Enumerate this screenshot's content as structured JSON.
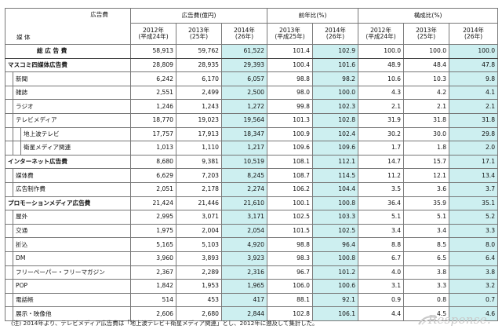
{
  "header": {
    "corner_top": "広告費",
    "corner_bottom": "媒 体",
    "groups": [
      {
        "label": "広告費(億円)"
      },
      {
        "label": "前年比(%)"
      },
      {
        "label": "構成比(%)"
      }
    ],
    "subcols": [
      {
        "l1": "2012年",
        "l2": "(平成24年)"
      },
      {
        "l1": "2013年",
        "l2": "(25年)"
      },
      {
        "l1": "2014年",
        "l2": "(26年)"
      },
      {
        "l1": "2013年",
        "l2": "(平成25年)"
      },
      {
        "l1": "2014年",
        "l2": "(26年)"
      },
      {
        "l1": "2012年",
        "l2": "(平成24年)"
      },
      {
        "l1": "2013年",
        "l2": "(25年)"
      },
      {
        "l1": "2014年",
        "l2": "(26年)"
      }
    ]
  },
  "rows": [
    {
      "label": "総 広 告 費",
      "v": [
        "58,913",
        "59,762",
        "61,522",
        "101.4",
        "102.9",
        "100.0",
        "100.0",
        "100.0"
      ]
    },
    {
      "label": "マスコミ四媒体広告費",
      "v": [
        "28,809",
        "28,935",
        "29,393",
        "100.4",
        "101.6",
        "48.9",
        "48.4",
        "47.8"
      ]
    },
    {
      "label": "新聞",
      "v": [
        "6,242",
        "6,170",
        "6,057",
        "98.8",
        "98.2",
        "10.6",
        "10.3",
        "9.8"
      ]
    },
    {
      "label": "雑誌",
      "v": [
        "2,551",
        "2,499",
        "2,500",
        "98.0",
        "100.0",
        "4.3",
        "4.2",
        "4.1"
      ]
    },
    {
      "label": "ラジオ",
      "v": [
        "1,246",
        "1,243",
        "1,272",
        "99.8",
        "102.3",
        "2.1",
        "2.1",
        "2.1"
      ]
    },
    {
      "label": "テレビメディア",
      "v": [
        "18,770",
        "19,023",
        "19,564",
        "101.3",
        "102.8",
        "31.9",
        "31.8",
        "31.8"
      ]
    },
    {
      "label": "地上波テレビ",
      "v": [
        "17,757",
        "17,913",
        "18,347",
        "100.9",
        "102.4",
        "30.2",
        "30.0",
        "29.8"
      ]
    },
    {
      "label": "衛星メディア関連",
      "v": [
        "1,013",
        "1,110",
        "1,217",
        "109.6",
        "109.6",
        "1.7",
        "1.8",
        "2.0"
      ]
    },
    {
      "label": "インターネット広告費",
      "v": [
        "8,680",
        "9,381",
        "10,519",
        "108.1",
        "112.1",
        "14.7",
        "15.7",
        "17.1"
      ]
    },
    {
      "label": "媒体費",
      "v": [
        "6,629",
        "7,203",
        "8,245",
        "108.7",
        "114.5",
        "11.2",
        "12.1",
        "13.4"
      ]
    },
    {
      "label": "広告制作費",
      "v": [
        "2,051",
        "2,178",
        "2,274",
        "106.2",
        "104.4",
        "3.5",
        "3.6",
        "3.7"
      ]
    },
    {
      "label": "プロモーションメディア広告費",
      "v": [
        "21,424",
        "21,446",
        "21,610",
        "100.1",
        "100.8",
        "36.4",
        "35.9",
        "35.1"
      ]
    },
    {
      "label": "屋外",
      "v": [
        "2,995",
        "3,071",
        "3,171",
        "102.5",
        "103.3",
        "5.1",
        "5.1",
        "5.2"
      ]
    },
    {
      "label": "交通",
      "v": [
        "1,975",
        "2,004",
        "2,054",
        "101.5",
        "102.5",
        "3.4",
        "3.4",
        "3.3"
      ]
    },
    {
      "label": "折込",
      "v": [
        "5,165",
        "5,103",
        "4,920",
        "98.8",
        "96.4",
        "8.8",
        "8.5",
        "8.0"
      ]
    },
    {
      "label": "DM",
      "v": [
        "3,960",
        "3,893",
        "3,923",
        "98.3",
        "100.8",
        "6.7",
        "6.5",
        "6.4"
      ]
    },
    {
      "label": "フリーペーパー・フリーマガジン",
      "v": [
        "2,367",
        "2,289",
        "2,316",
        "96.7",
        "101.2",
        "4.0",
        "3.8",
        "3.8"
      ]
    },
    {
      "label": "POP",
      "v": [
        "1,842",
        "1,953",
        "1,965",
        "106.0",
        "100.6",
        "3.1",
        "3.3",
        "3.2"
      ]
    },
    {
      "label": "電話帳",
      "v": [
        "514",
        "453",
        "417",
        "88.1",
        "92.1",
        "0.9",
        "0.8",
        "0.7"
      ]
    },
    {
      "label": "展示・映像他",
      "v": [
        "2,606",
        "2,680",
        "2,844",
        "102.8",
        "106.1",
        "4.4",
        "4.5",
        "4.6"
      ]
    }
  ],
  "note": "(注) 2014年より、テレビメディア広告費は「地上波テレビ＋衛星メディア関連」とし、2012年に遡及して集計した。",
  "logo": {
    "text": "Response."
  }
}
